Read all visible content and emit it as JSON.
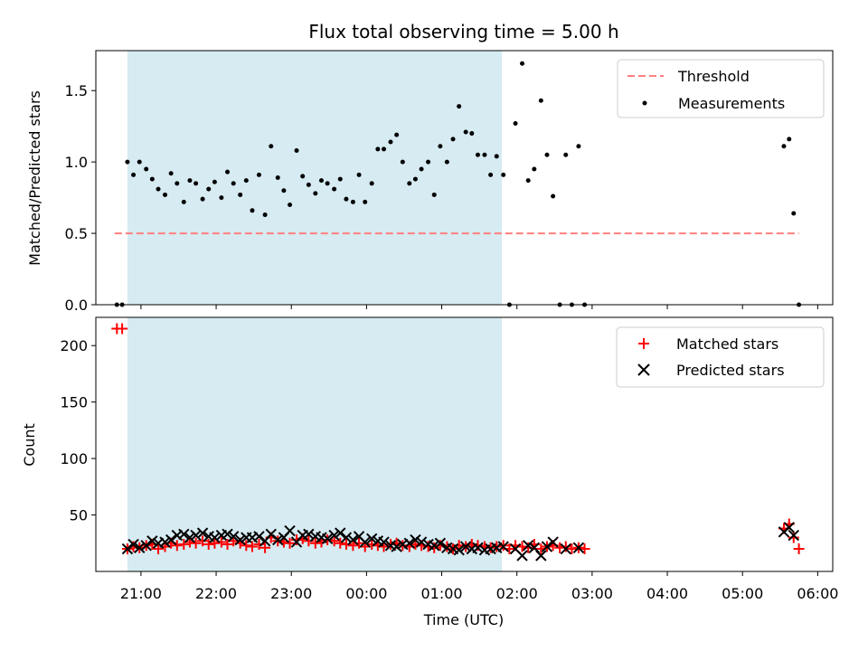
{
  "chart_data": [
    {
      "type": "scatter",
      "panel": "top",
      "title": "Flux total observing time = 5.00 h",
      "ylabel": "Matched/Predicted stars",
      "ylim": [
        0,
        1.78
      ],
      "yticks": [
        0.0,
        0.5,
        1.0,
        1.5
      ],
      "ytick_labels": [
        "0.0",
        "0.5",
        "1.0",
        "1.5"
      ],
      "xlim_hours": [
        20.4,
        30.2
      ],
      "shaded_span_hours": [
        20.82,
        25.8
      ],
      "legend_position": "top-right",
      "threshold": {
        "name": "Threshold",
        "value": 0.5,
        "x_range_hours": [
          20.65,
          29.75
        ],
        "color": "#ff7f7f"
      },
      "series": [
        {
          "name": "Measurements",
          "color": "#000000",
          "x_hours": [
            20.68,
            20.75,
            20.82,
            20.9,
            20.98,
            21.07,
            21.15,
            21.23,
            21.32,
            21.4,
            21.48,
            21.57,
            21.65,
            21.73,
            21.82,
            21.9,
            21.98,
            22.07,
            22.15,
            22.23,
            22.32,
            22.4,
            22.48,
            22.57,
            22.65,
            22.73,
            22.82,
            22.9,
            22.98,
            23.07,
            23.15,
            23.23,
            23.32,
            23.4,
            23.48,
            23.57,
            23.65,
            23.73,
            23.82,
            23.9,
            23.98,
            24.07,
            24.15,
            24.23,
            24.32,
            24.4,
            24.48,
            24.57,
            24.65,
            24.73,
            24.82,
            24.9,
            24.98,
            25.07,
            25.15,
            25.23,
            25.32,
            25.4,
            25.48,
            25.57,
            25.65,
            25.73,
            25.82,
            25.9,
            25.98,
            26.07,
            26.15,
            26.23,
            26.32,
            26.4,
            26.48,
            26.57,
            26.65,
            26.73,
            26.82,
            26.9,
            29.55,
            29.62,
            29.68,
            29.75
          ],
          "y": [
            0.0,
            0.0,
            1.0,
            0.91,
            1.0,
            0.95,
            0.88,
            0.81,
            0.77,
            0.92,
            0.85,
            0.72,
            0.87,
            0.85,
            0.74,
            0.81,
            0.86,
            0.75,
            0.93,
            0.85,
            0.77,
            0.87,
            0.66,
            0.91,
            0.63,
            1.11,
            0.89,
            0.8,
            0.7,
            1.08,
            0.9,
            0.84,
            0.78,
            0.87,
            0.85,
            0.81,
            0.88,
            0.74,
            0.72,
            0.91,
            0.72,
            0.85,
            1.09,
            1.09,
            1.14,
            1.19,
            1.0,
            0.85,
            0.88,
            0.95,
            1.0,
            0.77,
            1.11,
            1.0,
            1.16,
            1.39,
            1.21,
            1.2,
            1.05,
            1.05,
            0.91,
            1.04,
            0.91,
            0.0,
            1.27,
            1.69,
            0.87,
            0.95,
            1.43,
            1.05,
            0.76,
            0.0,
            1.05,
            0.0,
            1.11,
            0.0,
            1.11,
            1.16,
            0.64,
            0.0
          ]
        }
      ]
    },
    {
      "type": "scatter",
      "panel": "bottom",
      "xlabel": "Time (UTC)",
      "ylabel": "Count",
      "ylim": [
        0,
        225
      ],
      "yticks": [
        50,
        100,
        150,
        200
      ],
      "ytick_labels": [
        "50",
        "100",
        "150",
        "200"
      ],
      "xlim_hours": [
        20.4,
        30.2
      ],
      "xticks_hours": [
        21,
        22,
        23,
        24,
        25,
        26,
        27,
        28,
        29,
        30
      ],
      "xtick_labels": [
        "21:00",
        "22:00",
        "23:00",
        "00:00",
        "01:00",
        "02:00",
        "03:00",
        "04:00",
        "05:00",
        "06:00"
      ],
      "shaded_span_hours": [
        20.82,
        25.8
      ],
      "legend_position": "top-right",
      "series": [
        {
          "name": "Matched stars",
          "marker": "plus",
          "color": "#ff0000",
          "x_hours": [
            20.68,
            20.75,
            20.82,
            20.9,
            20.98,
            21.07,
            21.15,
            21.23,
            21.32,
            21.4,
            21.48,
            21.57,
            21.65,
            21.73,
            21.82,
            21.9,
            21.98,
            22.07,
            22.15,
            22.23,
            22.32,
            22.4,
            22.48,
            22.57,
            22.65,
            22.73,
            22.82,
            22.9,
            22.98,
            23.07,
            23.15,
            23.23,
            23.32,
            23.4,
            23.48,
            23.57,
            23.65,
            23.73,
            23.82,
            23.9,
            23.98,
            24.07,
            24.15,
            24.23,
            24.32,
            24.4,
            24.48,
            24.57,
            24.65,
            24.73,
            24.82,
            24.9,
            24.98,
            25.07,
            25.15,
            25.23,
            25.32,
            25.4,
            25.48,
            25.57,
            25.65,
            25.73,
            25.82,
            25.9,
            25.98,
            26.07,
            26.15,
            26.23,
            26.32,
            26.4,
            26.48,
            26.57,
            26.65,
            26.73,
            26.82,
            26.9,
            29.55,
            29.62,
            29.68,
            29.75
          ],
          "y": [
            215,
            215,
            20,
            22,
            21,
            23,
            24,
            20,
            22,
            25,
            23,
            24,
            26,
            25,
            27,
            24,
            25,
            26,
            24,
            27,
            25,
            23,
            22,
            24,
            21,
            30,
            27,
            26,
            25,
            28,
            29,
            27,
            25,
            26,
            28,
            27,
            25,
            24,
            23,
            25,
            22,
            24,
            23,
            22,
            24,
            25,
            23,
            22,
            24,
            23,
            22,
            21,
            23,
            22,
            20,
            23,
            22,
            24,
            23,
            22,
            21,
            22,
            23,
            20,
            23,
            22,
            21,
            24,
            20,
            22,
            23,
            21,
            22,
            20,
            21,
            20,
            38,
            42,
            30,
            20
          ]
        },
        {
          "name": "Predicted stars",
          "marker": "x",
          "color": "#000000",
          "x_hours": [
            20.82,
            20.9,
            20.98,
            21.07,
            21.15,
            21.23,
            21.32,
            21.4,
            21.48,
            21.57,
            21.65,
            21.73,
            21.82,
            21.9,
            21.98,
            22.07,
            22.15,
            22.23,
            22.32,
            22.4,
            22.48,
            22.57,
            22.65,
            22.73,
            22.82,
            22.9,
            22.98,
            23.07,
            23.15,
            23.23,
            23.32,
            23.4,
            23.48,
            23.57,
            23.65,
            23.73,
            23.82,
            23.9,
            23.98,
            24.07,
            24.15,
            24.23,
            24.32,
            24.4,
            24.48,
            24.57,
            24.65,
            24.73,
            24.82,
            24.9,
            24.98,
            25.07,
            25.15,
            25.23,
            25.32,
            25.4,
            25.48,
            25.57,
            25.65,
            25.73,
            25.82,
            25.98,
            26.07,
            26.15,
            26.23,
            26.32,
            26.4,
            26.48,
            26.65,
            26.82,
            29.55,
            29.62,
            29.68
          ],
          "y": [
            20,
            24,
            21,
            23,
            27,
            25,
            26,
            28,
            32,
            33,
            30,
            32,
            34,
            31,
            30,
            32,
            33,
            31,
            28,
            30,
            30,
            31,
            27,
            33,
            28,
            30,
            36,
            26,
            32,
            33,
            31,
            30,
            29,
            32,
            34,
            30,
            28,
            31,
            26,
            29,
            27,
            26,
            23,
            22,
            24,
            25,
            28,
            26,
            24,
            23,
            25,
            21,
            20,
            19,
            22,
            20,
            21,
            19,
            20,
            21,
            22,
            20,
            14,
            23,
            21,
            14,
            22,
            26,
            20,
            21,
            35,
            39,
            32
          ]
        }
      ]
    }
  ]
}
